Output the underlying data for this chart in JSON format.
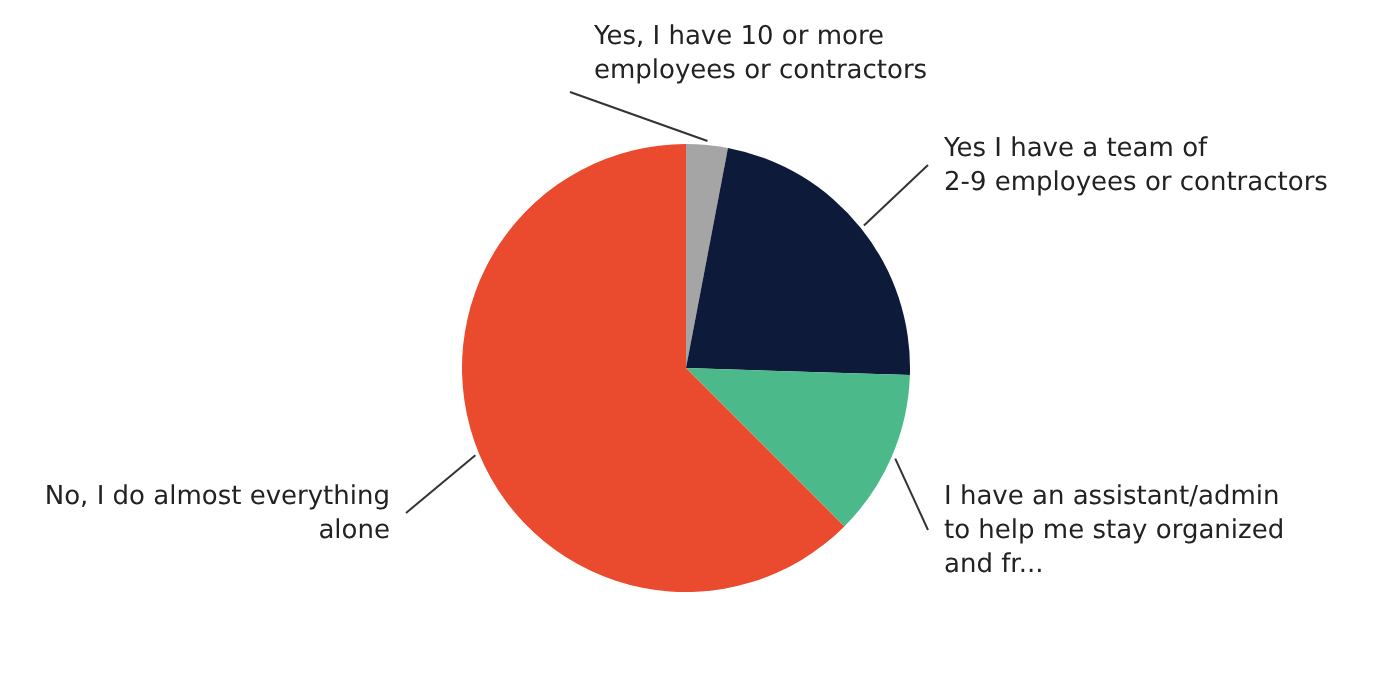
{
  "chart_data": {
    "type": "pie",
    "categories": [
      "Yes, I have 10 or more\nemployees or contractors",
      "Yes I have a team of\n2-9 employees or contractors",
      "I have an assistant/admin\nto help me stay organized\nand fr...",
      "No, I do almost everything\nalone"
    ],
    "values": [
      3,
      22.5,
      12,
      62.5
    ],
    "colors": [
      "#a5a5a5",
      "#0e1a3a",
      "#4cb98a",
      "#ea4a2e"
    ]
  }
}
